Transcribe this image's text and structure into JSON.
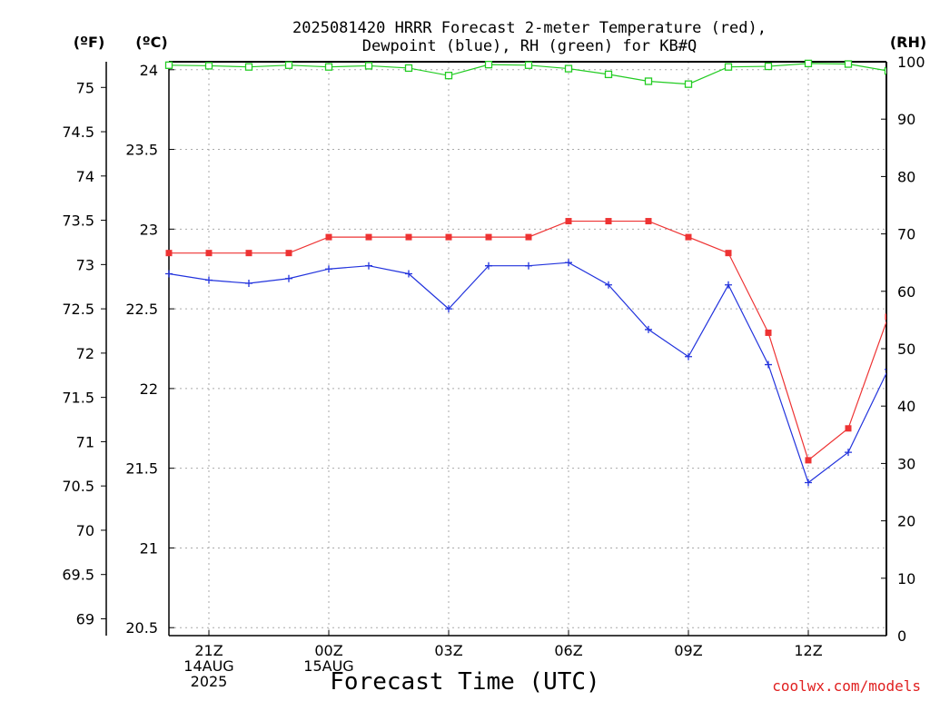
{
  "chart_data": {
    "type": "line",
    "title_line1": "2025081420 HRRR Forecast 2-meter Temperature (red),",
    "title_line2": "Dewpoint (blue), RH (green) for KB#Q",
    "xlabel": "Forecast Time (UTC)",
    "credit": "coolwx.com/models",
    "units": {
      "f": "(ºF)",
      "c": "(ºC)",
      "rh": "(RH)"
    },
    "x": [
      "20Z",
      "21Z",
      "22Z",
      "23Z",
      "00Z",
      "01Z",
      "02Z",
      "03Z",
      "04Z",
      "05Z",
      "06Z",
      "07Z",
      "08Z",
      "09Z",
      "10Z",
      "11Z",
      "12Z",
      "13Z",
      "14Z"
    ],
    "x_ticks": [
      {
        "at": "21Z",
        "lines": [
          "21Z",
          "14AUG",
          "2025"
        ]
      },
      {
        "at": "00Z",
        "lines": [
          "00Z",
          "15AUG"
        ]
      },
      {
        "at": "03Z",
        "lines": [
          "03Z"
        ]
      },
      {
        "at": "06Z",
        "lines": [
          "06Z"
        ]
      },
      {
        "at": "09Z",
        "lines": [
          "09Z"
        ]
      },
      {
        "at": "12Z",
        "lines": [
          "12Z"
        ]
      }
    ],
    "ylim_c": [
      20.45,
      24.05
    ],
    "yticks_c": [
      "20.5",
      "21",
      "21.5",
      "22",
      "22.5",
      "23",
      "23.5",
      "24"
    ],
    "yticks_f": [
      "69",
      "69.5",
      "70",
      "70.5",
      "71",
      "71.5",
      "72",
      "72.5",
      "73",
      "73.5",
      "74",
      "74.5",
      "75"
    ],
    "ylim_rh": [
      0,
      100
    ],
    "yticks_rh": [
      "0",
      "10",
      "20",
      "30",
      "40",
      "50",
      "60",
      "70",
      "80",
      "90",
      "100"
    ],
    "grid": true,
    "series": [
      {
        "name": "Temperature",
        "axis": "c",
        "color": "#ee3333",
        "marker": "filled-square",
        "values": [
          22.85,
          22.85,
          22.85,
          22.85,
          22.95,
          22.95,
          22.95,
          22.95,
          22.95,
          22.95,
          23.05,
          23.05,
          23.05,
          22.95,
          22.85,
          22.35,
          21.55,
          21.75,
          22.45
        ]
      },
      {
        "name": "Dewpoint",
        "axis": "c",
        "color": "#2233dd",
        "marker": "plus",
        "values": [
          22.72,
          22.68,
          22.66,
          22.69,
          22.75,
          22.77,
          22.72,
          22.5,
          22.77,
          22.77,
          22.79,
          22.65,
          22.37,
          22.2,
          22.65,
          22.15,
          21.41,
          21.6,
          22.12
        ]
      },
      {
        "name": "RH",
        "axis": "rh",
        "color": "#22cc22",
        "marker": "open-square",
        "values": [
          99.4,
          99.3,
          99.1,
          99.4,
          99.1,
          99.3,
          98.9,
          97.6,
          99.5,
          99.4,
          98.8,
          97.8,
          96.6,
          96.1,
          99.1,
          99.2,
          99.7,
          99.6,
          98.4
        ]
      }
    ]
  }
}
